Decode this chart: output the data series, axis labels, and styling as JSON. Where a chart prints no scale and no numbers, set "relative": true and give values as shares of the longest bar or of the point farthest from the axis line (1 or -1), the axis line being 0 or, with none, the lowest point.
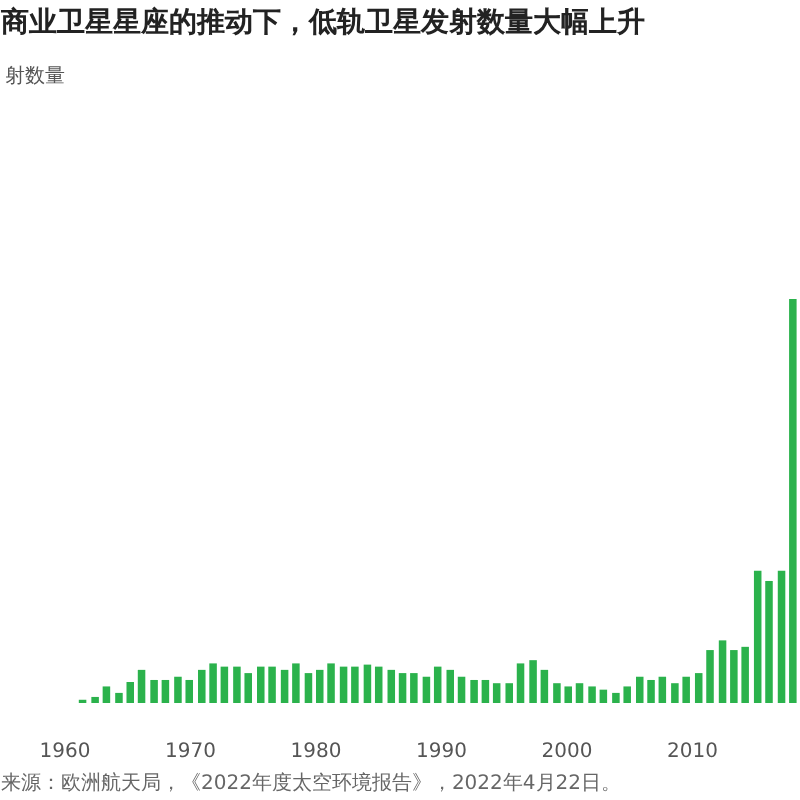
{
  "chart_data": {
    "type": "bar",
    "title": "商业卫星星座的推动下，低轨卫星发射数量大幅上升",
    "relative": true,
    "x": [
      1961.4,
      1962.4,
      1963.3,
      1964.3,
      1965.2,
      1966.1,
      1967.1,
      1968.0,
      1969.0,
      1969.9,
      1970.9,
      1971.8,
      1972.7,
      1973.7,
      1974.6,
      1975.6,
      1976.5,
      1977.5,
      1978.4,
      1979.4,
      1980.3,
      1981.2,
      1982.2,
      1983.1,
      1984.1,
      1985.0,
      1986.0,
      1986.9,
      1987.8,
      1988.8,
      1989.7,
      1990.7,
      1991.6,
      1992.6,
      1993.5,
      1994.4,
      1995.4,
      1996.3,
      1997.3,
      1998.2,
      1999.2,
      2000.1,
      2001.0,
      2002.0,
      2002.9,
      2003.9,
      2004.8,
      2005.8,
      2006.7,
      2007.6,
      2008.6,
      2009.5,
      2010.5,
      2011.4,
      2012.4,
      2013.3,
      2014.2,
      2015.2,
      2016.1,
      2017.1,
      2018.0
    ],
    "values": [
      0.008,
      0.015,
      0.041,
      0.025,
      0.052,
      0.082,
      0.057,
      0.057,
      0.065,
      0.057,
      0.082,
      0.098,
      0.09,
      0.09,
      0.074,
      0.09,
      0.09,
      0.082,
      0.098,
      0.074,
      0.082,
      0.098,
      0.09,
      0.09,
      0.095,
      0.09,
      0.082,
      0.074,
      0.074,
      0.065,
      0.09,
      0.082,
      0.065,
      0.057,
      0.057,
      0.049,
      0.049,
      0.098,
      0.106,
      0.082,
      0.049,
      0.041,
      0.049,
      0.041,
      0.033,
      0.025,
      0.041,
      0.065,
      0.057,
      0.065,
      0.049,
      0.065,
      0.074,
      0.131,
      0.155,
      0.131,
      0.139,
      0.327,
      0.302,
      0.327,
      1
    ],
    "color": "#2bb24c",
    "xlim": [
      1960,
      2018.65
    ],
    "xticks": [
      1960,
      1970,
      1980,
      1990,
      2000,
      2010
    ],
    "annotations": [
      "射数量",
      "来源：欧洲航天局，《2022年度太空环境报告》，2022年4月22日。"
    ]
  }
}
